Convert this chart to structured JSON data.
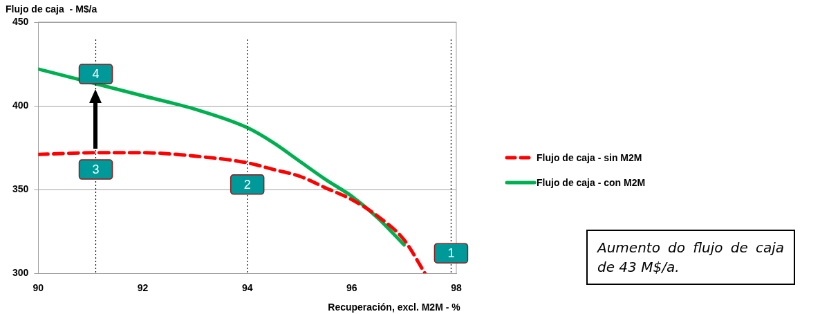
{
  "chart_data": {
    "type": "line",
    "ylabel": "Flujo de caja  - M$/a",
    "xlabel": "Recuperación, excl. M2M - %",
    "xlim": [
      90,
      98
    ],
    "xticks": [
      90,
      92,
      94,
      96,
      98
    ],
    "ylim": [
      300,
      450
    ],
    "yticks": [
      300,
      350,
      400,
      450
    ],
    "grid": "y",
    "legend": "right",
    "marker": "none",
    "series": [
      {
        "name": "Flujo de caja - sin M2M",
        "color": "#ff0000",
        "line_style": "dashed",
        "x": [
          90,
          91.1,
          92,
          93,
          94,
          94.5,
          95,
          95.5,
          96,
          96.5,
          97,
          97.4
        ],
        "values": [
          371,
          372,
          372,
          370,
          366,
          362,
          358,
          351,
          344,
          334,
          320,
          300
        ]
      },
      {
        "name": "Flujo de caja - con M2M",
        "color": "#00b050",
        "line_style": "solid",
        "x": [
          90,
          92,
          93,
          94,
          94.5,
          95,
          95.5,
          96,
          96.5,
          97
        ],
        "values": [
          422,
          406,
          398,
          387,
          378,
          367,
          356,
          346,
          333,
          317
        ]
      }
    ],
    "ref_lines": [
      {
        "axis": "x",
        "value": 91.1,
        "color": "#000000",
        "line_style": "dotted"
      },
      {
        "axis": "x",
        "value": 94,
        "color": "#000000",
        "line_style": "dotted"
      },
      {
        "axis": "x",
        "value": 97.9,
        "color": "#000000",
        "line_style": "dotted"
      }
    ],
    "annotations": [
      {
        "text": "4",
        "x": 91.1,
        "y": 419
      },
      {
        "text": "3",
        "x": 91.1,
        "y": 362
      },
      {
        "text": "2",
        "x": 94,
        "y": 353
      },
      {
        "text": "1",
        "x": 97.9,
        "y": 312
      },
      "Aumento do flujo de caja de 43 M$/a."
    ]
  }
}
